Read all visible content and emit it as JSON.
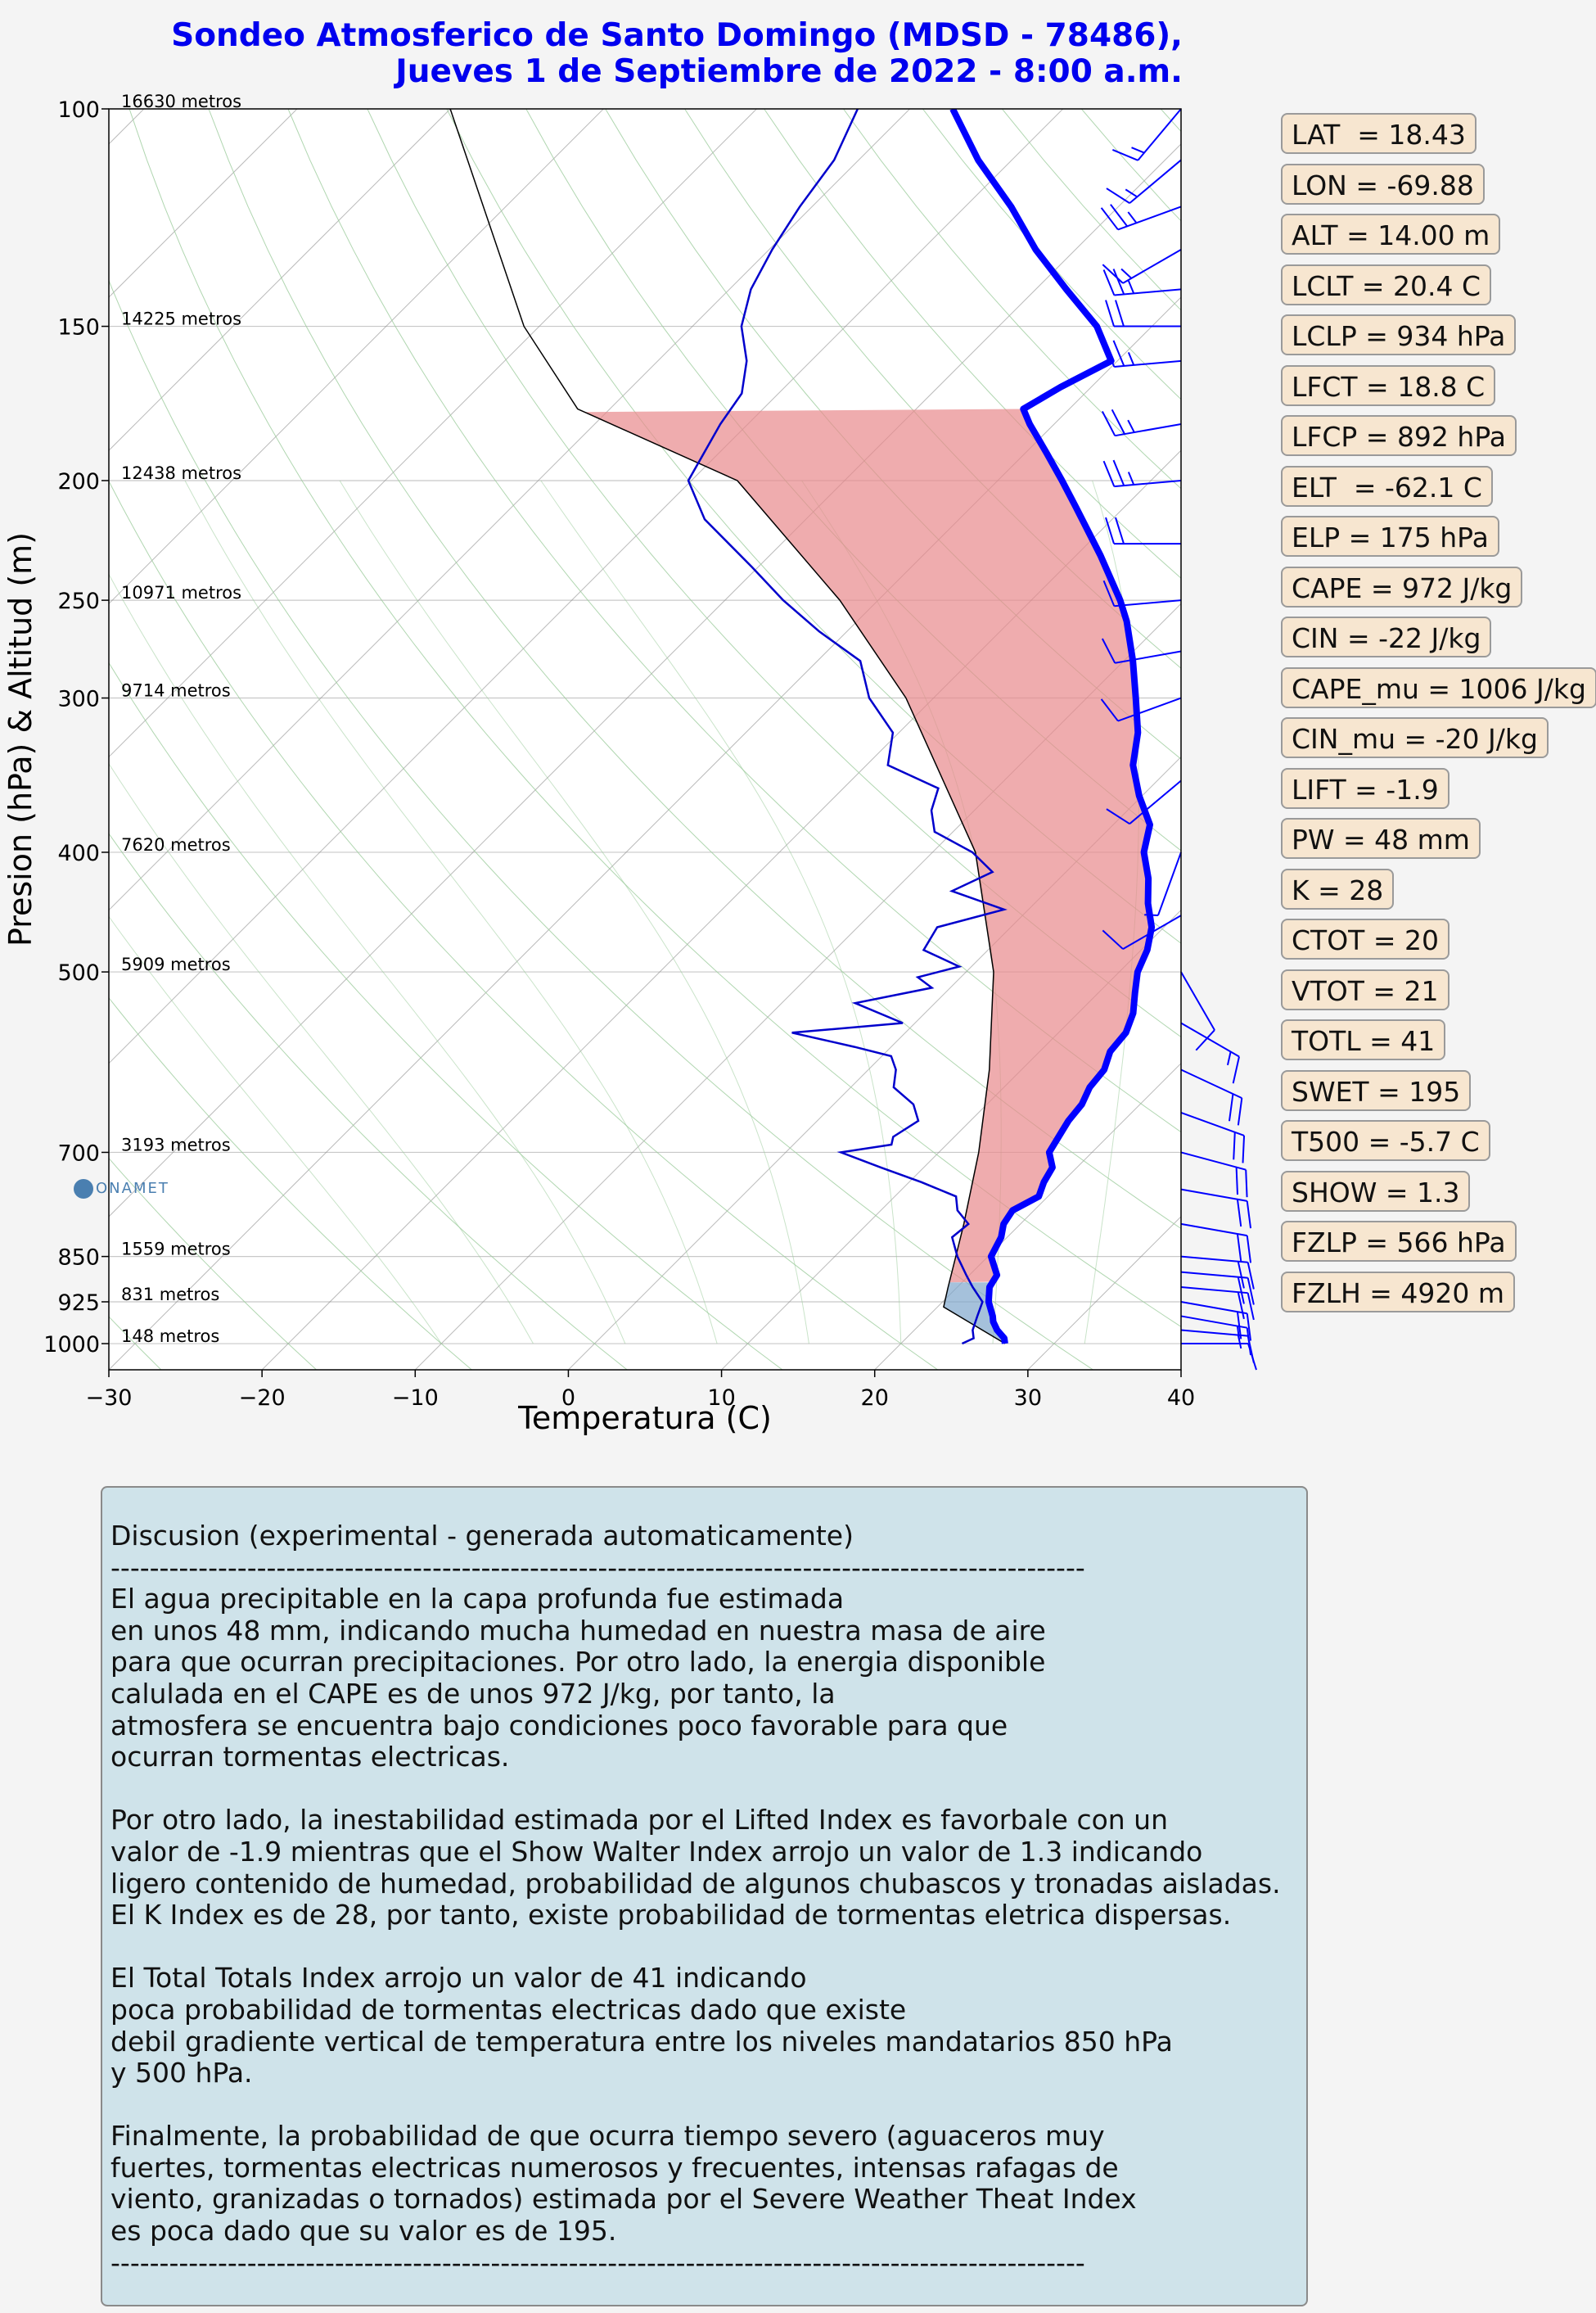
{
  "title": {
    "line1": "Sondeo Atmosferico de Santo Domingo (MDSD - 78486),",
    "line2": "Jueves 1 de Septiembre de 2022 - 8:00 a.m."
  },
  "colors": {
    "temperature": "#0000ff",
    "dewpoint": "#0000cc",
    "parcel": "#000000",
    "cape_fill": "#e8898b",
    "cin_fill": "#7fa7cc",
    "isotherms": "#8c8c8c",
    "dry_adiabats": "#9ccc9c",
    "wind_barbs": "#0000ff",
    "index_box": "#f7e6d0",
    "discussion_box": "#cfe3ea"
  },
  "logo": {
    "text": "ONAMET"
  },
  "chart_data": {
    "type": "skew-t",
    "xlabel": "Temperatura (C)",
    "ylabel": "Presion (hPa) & Altitud (m)",
    "xlim": [
      -30,
      40
    ],
    "ylim": [
      1050,
      100
    ],
    "log_pressure_axis": true,
    "x_ticks": [
      "−30",
      "−20",
      "−10",
      "0",
      "10",
      "20",
      "30",
      "40"
    ],
    "pressure_ticks": [
      100,
      150,
      200,
      250,
      300,
      400,
      500,
      700,
      850,
      925,
      1000
    ],
    "height_labels": [
      {
        "p": 100,
        "text": "16630 metros"
      },
      {
        "p": 150,
        "text": "14225 metros"
      },
      {
        "p": 200,
        "text": "12438 metros"
      },
      {
        "p": 250,
        "text": "10971 metros"
      },
      {
        "p": 300,
        "text": "9714 metros"
      },
      {
        "p": 400,
        "text": "7620 metros"
      },
      {
        "p": 500,
        "text": "5909 metros"
      },
      {
        "p": 700,
        "text": "3193 metros"
      },
      {
        "p": 850,
        "text": "1559 metros"
      },
      {
        "p": 925,
        "text": "831 metros"
      },
      {
        "p": 1000,
        "text": "148 metros"
      }
    ],
    "temperature_profile": [
      [
        1000,
        26.8
      ],
      [
        990,
        26.4
      ],
      [
        975,
        25.4
      ],
      [
        960,
        24.6
      ],
      [
        950,
        24.2
      ],
      [
        925,
        23.0
      ],
      [
        900,
        22.1
      ],
      [
        880,
        21.8
      ],
      [
        850,
        20.2
      ],
      [
        820,
        19.6
      ],
      [
        800,
        18.9
      ],
      [
        780,
        18.6
      ],
      [
        760,
        19.4
      ],
      [
        740,
        18.8
      ],
      [
        720,
        18.4
      ],
      [
        700,
        17.2
      ],
      [
        680,
        16.8
      ],
      [
        660,
        16.4
      ],
      [
        640,
        16.2
      ],
      [
        620,
        15.6
      ],
      [
        600,
        15.4
      ],
      [
        580,
        14.6
      ],
      [
        560,
        14.4
      ],
      [
        540,
        13.6
      ],
      [
        520,
        12.4
      ],
      [
        500,
        11.2
      ],
      [
        480,
        10.4
      ],
      [
        460,
        9.2
      ],
      [
        440,
        7.4
      ],
      [
        420,
        5.8
      ],
      [
        400,
        3.8
      ],
      [
        380,
        2.4
      ],
      [
        360,
        -0.2
      ],
      [
        340,
        -2.6
      ],
      [
        320,
        -4.4
      ],
      [
        300,
        -6.8
      ],
      [
        280,
        -9.4
      ],
      [
        260,
        -12.4
      ],
      [
        250,
        -14.2
      ],
      [
        230,
        -18.4
      ],
      [
        210,
        -23.2
      ],
      [
        200,
        -25.8
      ],
      [
        190,
        -28.6
      ],
      [
        180,
        -31.6
      ],
      [
        175,
        -33.0
      ],
      [
        168,
        -32.0
      ],
      [
        160,
        -30.4
      ],
      [
        150,
        -33.6
      ],
      [
        140,
        -38.0
      ],
      [
        130,
        -42.6
      ],
      [
        120,
        -47.0
      ],
      [
        110,
        -52.2
      ],
      [
        100,
        -57.2
      ]
    ],
    "dewpoint_profile": [
      [
        1000,
        24.0
      ],
      [
        990,
        24.4
      ],
      [
        975,
        23.8
      ],
      [
        950,
        23.2
      ],
      [
        925,
        22.6
      ],
      [
        900,
        21.0
      ],
      [
        880,
        19.8
      ],
      [
        850,
        18.0
      ],
      [
        820,
        16.4
      ],
      [
        800,
        16.6
      ],
      [
        780,
        15.0
      ],
      [
        760,
        14.0
      ],
      [
        740,
        10.8
      ],
      [
        720,
        7.2
      ],
      [
        700,
        3.6
      ],
      [
        690,
        6.4
      ],
      [
        680,
        6.0
      ],
      [
        660,
        6.6
      ],
      [
        640,
        5.2
      ],
      [
        620,
        2.8
      ],
      [
        600,
        1.8
      ],
      [
        585,
        0.6
      ],
      [
        575,
        -2.4
      ],
      [
        560,
        -7.4
      ],
      [
        550,
        -0.8
      ],
      [
        530,
        -5.2
      ],
      [
        515,
        -1.2
      ],
      [
        505,
        -2.8
      ],
      [
        495,
        -0.8
      ],
      [
        480,
        -4.2
      ],
      [
        460,
        -4.8
      ],
      [
        445,
        -1.6
      ],
      [
        430,
        -6.2
      ],
      [
        415,
        -4.8
      ],
      [
        400,
        -7.4
      ],
      [
        385,
        -11.2
      ],
      [
        370,
        -12.8
      ],
      [
        355,
        -13.8
      ],
      [
        340,
        -18.6
      ],
      [
        320,
        -20.4
      ],
      [
        300,
        -24.2
      ],
      [
        280,
        -27.2
      ],
      [
        265,
        -31.8
      ],
      [
        250,
        -36.2
      ],
      [
        235,
        -40.4
      ],
      [
        215,
        -46.6
      ],
      [
        200,
        -50.2
      ],
      [
        180,
        -51.8
      ],
      [
        170,
        -52.4
      ],
      [
        160,
        -54.2
      ],
      [
        150,
        -56.8
      ],
      [
        140,
        -58.6
      ],
      [
        130,
        -59.8
      ],
      [
        120,
        -60.8
      ],
      [
        110,
        -61.6
      ],
      [
        100,
        -63.4
      ]
    ],
    "parcel_profile": [
      [
        1000,
        26.8
      ],
      [
        934,
        20.4
      ],
      [
        900,
        19.4
      ],
      [
        850,
        17.9
      ],
      [
        800,
        16.3
      ],
      [
        700,
        12.6
      ],
      [
        600,
        7.9
      ],
      [
        500,
        1.8
      ],
      [
        400,
        -7.2
      ],
      [
        300,
        -21.8
      ],
      [
        250,
        -32.5
      ],
      [
        200,
        -47.0
      ],
      [
        175,
        -62.1
      ],
      [
        150,
        -71.0
      ],
      [
        100,
        -90.0
      ]
    ],
    "cape_shading": {
      "from_hPa": 892,
      "to_hPa": 175
    },
    "cin_shading": {
      "from_hPa": 1000,
      "to_hPa": 892
    },
    "wind_barbs": [
      {
        "p": 1000,
        "dir": 90,
        "kt": 10
      },
      {
        "p": 975,
        "dir": 95,
        "kt": 15
      },
      {
        "p": 950,
        "dir": 100,
        "kt": 15
      },
      {
        "p": 925,
        "dir": 100,
        "kt": 20
      },
      {
        "p": 900,
        "dir": 95,
        "kt": 20
      },
      {
        "p": 875,
        "dir": 95,
        "kt": 20
      },
      {
        "p": 850,
        "dir": 95,
        "kt": 20
      },
      {
        "p": 800,
        "dir": 100,
        "kt": 20
      },
      {
        "p": 750,
        "dir": 100,
        "kt": 20
      },
      {
        "p": 700,
        "dir": 105,
        "kt": 20
      },
      {
        "p": 650,
        "dir": 110,
        "kt": 20
      },
      {
        "p": 600,
        "dir": 115,
        "kt": 20
      },
      {
        "p": 550,
        "dir": 120,
        "kt": 15
      },
      {
        "p": 500,
        "dir": 150,
        "kt": 10
      },
      {
        "p": 450,
        "dir": 240,
        "kt": 10
      },
      {
        "p": 400,
        "dir": 200,
        "kt": 5
      },
      {
        "p": 350,
        "dir": 230,
        "kt": 10
      },
      {
        "p": 300,
        "dir": 250,
        "kt": 10
      },
      {
        "p": 275,
        "dir": 260,
        "kt": 10
      },
      {
        "p": 250,
        "dir": 265,
        "kt": 15
      },
      {
        "p": 225,
        "dir": 270,
        "kt": 20
      },
      {
        "p": 200,
        "dir": 265,
        "kt": 25
      },
      {
        "p": 180,
        "dir": 260,
        "kt": 25
      },
      {
        "p": 160,
        "dir": 265,
        "kt": 25
      },
      {
        "p": 150,
        "dir": 270,
        "kt": 20
      },
      {
        "p": 140,
        "dir": 265,
        "kt": 25
      },
      {
        "p": 130,
        "dir": 240,
        "kt": 15
      },
      {
        "p": 120,
        "dir": 250,
        "kt": 25
      },
      {
        "p": 110,
        "dir": 230,
        "kt": 15
      },
      {
        "p": 100,
        "dir": 220,
        "kt": 15
      }
    ]
  },
  "indices": [
    "LAT  = 18.43",
    "LON = -69.88",
    "ALT = 14.00 m",
    "LCLT = 20.4 C",
    "LCLP = 934 hPa",
    "LFCT = 18.8 C",
    "LFCP = 892 hPa",
    "ELT  = -62.1 C",
    "ELP = 175 hPa",
    "CAPE = 972 J/kg",
    "CIN = -22 J/kg",
    "CAPE_mu = 1006 J/kg",
    "CIN_mu = -20 J/kg",
    "LIFT = -1.9",
    "PW = 48 mm",
    "K = 28",
    "CTOT = 20",
    "VTOT = 21",
    "TOTL = 41",
    "SWET = 195",
    "T500 = -5.7 C",
    "SHOW = 1.3",
    "FZLP = 566 hPa",
    "FZLH = 4920 m"
  ],
  "discussion": {
    "lines": [
      "Discusion (experimental - generada automaticamente)",
      "----------------------------------------------------------------------------------------------------",
      "El agua precipitable en la capa profunda fue estimada",
      "en unos 48 mm, indicando mucha humedad en nuestra masa de aire",
      "para que ocurran precipitaciones. Por otro lado, la energia disponible",
      "calulada en el CAPE es de unos 972 J/kg, por tanto, la",
      "atmosfera se encuentra bajo condiciones poco favorable para que",
      "ocurran tormentas electricas.",
      "",
      "Por otro lado, la inestabilidad estimada por el Lifted Index es favorbale con un",
      "valor de -1.9 mientras que el Show Walter Index arrojo un valor de 1.3 indicando",
      "ligero contenido de humedad, probabilidad de algunos chubascos y tronadas aisladas.",
      "El K Index es de 28, por tanto, existe probabilidad de tormentas eletrica dispersas.",
      "",
      "El Total Totals Index arrojo un valor de 41 indicando",
      "poca probabilidad de tormentas electricas dado que existe",
      "debil gradiente vertical de temperatura entre los niveles mandatarios 850 hPa",
      "y 500 hPa.",
      "",
      "Finalmente, la probabilidad de que ocurra tiempo severo (aguaceros muy",
      "fuertes, tormentas electricas numerosos y frecuentes, intensas rafagas de",
      "viento, granizadas o tornados) estimada por el Severe Weather Theat Index",
      "es poca dado que su valor es de 195.",
      "----------------------------------------------------------------------------------------------------"
    ]
  }
}
